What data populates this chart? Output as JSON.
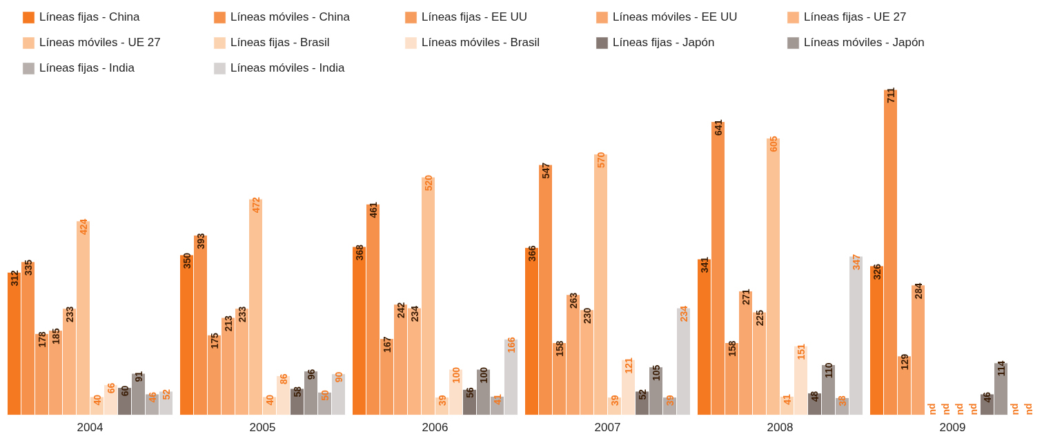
{
  "chart_data": {
    "type": "bar",
    "categories": [
      "2004",
      "2005",
      "2006",
      "2007",
      "2008",
      "2009"
    ],
    "series": [
      {
        "name": "Líneas fijas - China",
        "color": "#f47920",
        "values": [
          312,
          350,
          368,
          366,
          341,
          326
        ]
      },
      {
        "name": "Líneas móviles - China",
        "color": "#f5914a",
        "values": [
          335,
          393,
          461,
          547,
          641,
          711
        ]
      },
      {
        "name": "Líneas fijas - EE UU",
        "color": "#f69d5e",
        "values": [
          178,
          175,
          167,
          158,
          158,
          129
        ]
      },
      {
        "name": "Líneas móviles - EE UU",
        "color": "#f8a86f",
        "values": [
          185,
          213,
          242,
          263,
          271,
          284
        ]
      },
      {
        "name": "Líneas fijas - UE 27",
        "color": "#fab583",
        "values": [
          233,
          233,
          234,
          230,
          225,
          null
        ],
        "value_labels": [
          "233",
          "233",
          "234",
          "230",
          "225",
          "nd"
        ]
      },
      {
        "name": "Líneas móviles - UE 27",
        "color": "#fbc296",
        "values": [
          424,
          472,
          520,
          570,
          605,
          null
        ],
        "value_labels": [
          "424",
          "472",
          "520",
          "570",
          "605",
          "nd"
        ]
      },
      {
        "name": "Líneas fijas - Brasil",
        "color": "#fcd3b1",
        "values": [
          40,
          40,
          39,
          39,
          41,
          null
        ],
        "value_labels": [
          "40",
          "40",
          "39",
          "39",
          "41",
          "nd"
        ]
      },
      {
        "name": "Líneas móviles - Brasil",
        "color": "#fde0c9",
        "values": [
          66,
          86,
          100,
          121,
          151,
          null
        ],
        "value_labels": [
          "66",
          "86",
          "100",
          "121",
          "151",
          "nd"
        ]
      },
      {
        "name": "Líneas fijas - Japón",
        "color": "#857872",
        "values": [
          60,
          58,
          56,
          52,
          48,
          46
        ]
      },
      {
        "name": "Líneas móviles - Japón",
        "color": "#a19894",
        "values": [
          91,
          96,
          100,
          105,
          110,
          114
        ]
      },
      {
        "name": "Líneas fijas - India",
        "color": "#b7afac",
        "values": [
          46,
          50,
          41,
          39,
          38,
          null
        ],
        "value_labels": [
          "46",
          "50",
          "41",
          "39",
          "38",
          "nd"
        ]
      },
      {
        "name": "Líneas móviles - India",
        "color": "#d6d2d2",
        "values": [
          52,
          90,
          166,
          234,
          347,
          null
        ],
        "value_labels": [
          "52",
          "90",
          "166",
          "234",
          "347",
          "nd"
        ]
      }
    ],
    "data_labels": true,
    "tick_labels": "x",
    "grid": false,
    "legend": "top"
  }
}
